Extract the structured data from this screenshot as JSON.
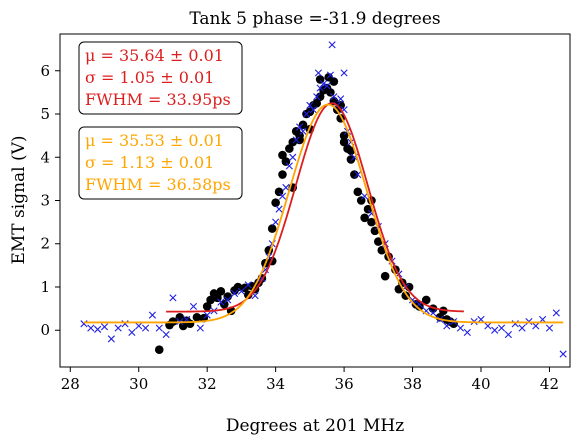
{
  "chart_data": {
    "type": "scatter",
    "title": "Tank 5 phase =-31.9 degrees",
    "xlabel": "Degrees at 201 MHz",
    "ylabel": "EMT signal (V)",
    "xlim": [
      27.7,
      42.6
    ],
    "ylim": [
      -0.85,
      6.85
    ],
    "xticks": [
      28,
      30,
      32,
      34,
      36,
      38,
      40,
      42
    ],
    "yticks": [
      0,
      1,
      2,
      3,
      4,
      5,
      6
    ],
    "grid": false,
    "fit_series": [
      {
        "color": "#dc1e1e",
        "mu": 35.64,
        "sigma": 1.05,
        "amplitude": 4.82,
        "offset": 0.43,
        "x_range": [
          30.8,
          39.5
        ]
      },
      {
        "color": "#ffa500",
        "mu": 35.53,
        "sigma": 1.13,
        "amplitude": 5.04,
        "offset": 0.18,
        "x_range": [
          28.4,
          42.4
        ]
      }
    ],
    "annotations": [
      {
        "color": "#dc1e1e",
        "lines": [
          "μ = 35.64 ± 0.01",
          "σ = 1.05 ± 0.01",
          "FWHM = 33.95ps"
        ]
      },
      {
        "color": "#ffa500",
        "lines": [
          "μ = 35.53 ± 0.01",
          "σ = 1.13 ± 0.01",
          "FWHM = 36.58ps"
        ]
      }
    ],
    "scatter_series": [
      {
        "marker": "circle",
        "color": "#000000",
        "points": [
          [
            30.6,
            -0.45
          ],
          [
            30.9,
            0.12
          ],
          [
            31.0,
            0.2
          ],
          [
            31.2,
            0.3
          ],
          [
            31.4,
            0.22
          ],
          [
            31.5,
            0.15
          ],
          [
            31.7,
            0.3
          ],
          [
            31.9,
            0.28
          ],
          [
            32.0,
            0.55
          ],
          [
            32.1,
            0.7
          ],
          [
            32.2,
            0.85
          ],
          [
            32.3,
            0.75
          ],
          [
            32.4,
            0.9
          ],
          [
            32.5,
            0.6
          ],
          [
            32.6,
            0.78
          ],
          [
            32.8,
            0.92
          ],
          [
            32.9,
            1.0
          ],
          [
            33.1,
            0.98
          ],
          [
            33.2,
            0.82
          ],
          [
            33.3,
            1.02
          ],
          [
            33.4,
            0.95
          ],
          [
            33.5,
            1.1
          ],
          [
            33.6,
            1.2
          ],
          [
            33.7,
            1.55
          ],
          [
            33.8,
            1.85
          ],
          [
            33.9,
            2.35
          ],
          [
            34.0,
            2.95
          ],
          [
            34.1,
            3.2
          ],
          [
            34.2,
            3.6
          ],
          [
            34.3,
            3.9
          ],
          [
            34.4,
            4.2
          ],
          [
            34.5,
            4.35
          ],
          [
            34.6,
            4.6
          ],
          [
            34.7,
            4.5
          ],
          [
            34.8,
            4.75
          ],
          [
            34.9,
            5.0
          ],
          [
            35.0,
            5.05
          ],
          [
            35.1,
            5.2
          ],
          [
            35.2,
            5.25
          ],
          [
            35.3,
            5.4
          ],
          [
            35.4,
            5.55
          ],
          [
            35.5,
            5.6
          ],
          [
            35.55,
            5.85
          ],
          [
            35.6,
            5.5
          ],
          [
            35.7,
            5.3
          ],
          [
            35.8,
            5.1
          ],
          [
            35.9,
            4.9
          ],
          [
            36.0,
            4.5
          ],
          [
            36.1,
            4.2
          ],
          [
            36.2,
            3.95
          ],
          [
            36.3,
            3.6
          ],
          [
            36.4,
            3.2
          ],
          [
            36.5,
            3.0
          ],
          [
            36.7,
            2.8
          ],
          [
            36.8,
            2.5
          ],
          [
            36.9,
            2.3
          ],
          [
            37.0,
            2.05
          ],
          [
            37.1,
            1.85
          ],
          [
            37.3,
            1.7
          ],
          [
            37.5,
            1.4
          ],
          [
            37.7,
            1.1
          ],
          [
            37.8,
            0.8
          ],
          [
            37.9,
            1.0
          ],
          [
            38.1,
            0.6
          ],
          [
            38.2,
            0.55
          ],
          [
            38.4,
            0.7
          ],
          [
            38.6,
            0.5
          ],
          [
            38.8,
            0.3
          ],
          [
            38.9,
            0.45
          ],
          [
            39.0,
            0.25
          ],
          [
            39.1,
            0.2
          ],
          [
            39.2,
            0.15
          ],
          [
            34.2,
            4.05
          ],
          [
            34.7,
            4.4
          ],
          [
            35.0,
            4.65
          ],
          [
            35.3,
            5.8
          ],
          [
            35.7,
            5.75
          ],
          [
            36.0,
            4.35
          ],
          [
            36.2,
            4.15
          ],
          [
            34.5,
            3.3
          ],
          [
            33.9,
            1.6
          ],
          [
            36.6,
            2.6
          ],
          [
            37.2,
            1.25
          ],
          [
            37.6,
            0.95
          ],
          [
            32.7,
            0.45
          ],
          [
            31.3,
            0.1
          ],
          [
            36.8,
            3.0
          ],
          [
            35.9,
            5.2
          ]
        ]
      },
      {
        "marker": "x",
        "color": "#1f1fe6",
        "points": [
          [
            28.4,
            0.15
          ],
          [
            28.6,
            0.05
          ],
          [
            28.8,
            0.02
          ],
          [
            29.0,
            0.08
          ],
          [
            29.2,
            -0.2
          ],
          [
            29.4,
            0.05
          ],
          [
            29.6,
            0.15
          ],
          [
            29.8,
            -0.05
          ],
          [
            30.0,
            0.1
          ],
          [
            30.2,
            0.05
          ],
          [
            30.4,
            0.35
          ],
          [
            30.6,
            0.05
          ],
          [
            30.8,
            -0.1
          ],
          [
            31.0,
            0.75
          ],
          [
            31.2,
            0.2
          ],
          [
            31.4,
            0.25
          ],
          [
            31.6,
            0.55
          ],
          [
            31.8,
            0.05
          ],
          [
            32.0,
            0.35
          ],
          [
            32.2,
            0.45
          ],
          [
            32.4,
            0.65
          ],
          [
            32.6,
            0.7
          ],
          [
            32.8,
            0.85
          ],
          [
            33.0,
            0.9
          ],
          [
            33.2,
            1.05
          ],
          [
            33.4,
            0.8
          ],
          [
            33.6,
            1.2
          ],
          [
            33.7,
            1.4
          ],
          [
            33.8,
            1.7
          ],
          [
            33.9,
            2.0
          ],
          [
            34.0,
            2.5
          ],
          [
            34.1,
            2.8
          ],
          [
            34.2,
            3.1
          ],
          [
            34.3,
            3.3
          ],
          [
            34.4,
            3.8
          ],
          [
            34.5,
            4.0
          ],
          [
            34.6,
            4.4
          ],
          [
            34.7,
            4.7
          ],
          [
            34.8,
            4.6
          ],
          [
            34.9,
            5.0
          ],
          [
            35.0,
            5.2
          ],
          [
            35.1,
            5.1
          ],
          [
            35.2,
            5.4
          ],
          [
            35.3,
            5.6
          ],
          [
            35.4,
            5.7
          ],
          [
            35.5,
            5.65
          ],
          [
            35.6,
            5.9
          ],
          [
            35.65,
            6.6
          ],
          [
            35.7,
            5.4
          ],
          [
            35.8,
            5.2
          ],
          [
            35.9,
            5.35
          ],
          [
            36.0,
            5.1
          ],
          [
            36.1,
            4.6
          ],
          [
            36.2,
            4.35
          ],
          [
            36.3,
            4.0
          ],
          [
            36.4,
            3.6
          ],
          [
            36.6,
            3.1
          ],
          [
            36.8,
            2.7
          ],
          [
            37.0,
            2.4
          ],
          [
            37.2,
            2.0
          ],
          [
            37.4,
            1.6
          ],
          [
            37.6,
            1.3
          ],
          [
            37.8,
            1.0
          ],
          [
            38.0,
            0.7
          ],
          [
            38.2,
            0.6
          ],
          [
            38.4,
            0.45
          ],
          [
            38.6,
            0.4
          ],
          [
            38.8,
            0.25
          ],
          [
            39.0,
            0.1
          ],
          [
            39.2,
            0.2
          ],
          [
            39.4,
            0.05
          ],
          [
            39.6,
            -0.05
          ],
          [
            39.8,
            0.2
          ],
          [
            40.0,
            0.25
          ],
          [
            40.2,
            0.1
          ],
          [
            40.4,
            0.0
          ],
          [
            40.6,
            0.05
          ],
          [
            40.8,
            -0.1
          ],
          [
            41.0,
            0.15
          ],
          [
            41.2,
            0.05
          ],
          [
            41.4,
            0.2
          ],
          [
            41.6,
            0.1
          ],
          [
            41.8,
            0.25
          ],
          [
            42.0,
            0.05
          ],
          [
            42.2,
            0.4
          ],
          [
            42.4,
            -0.55
          ],
          [
            36.0,
            5.95
          ],
          [
            35.25,
            5.95
          ]
        ]
      }
    ]
  }
}
